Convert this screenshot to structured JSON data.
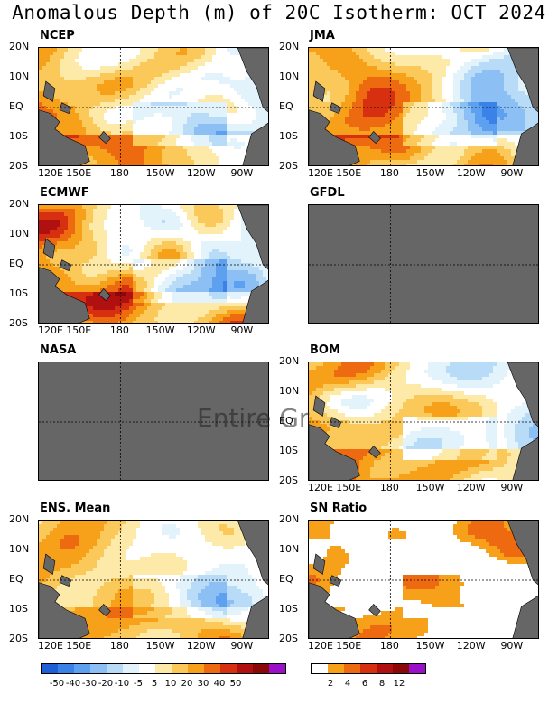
{
  "title": "Anomalous Depth (m) of 20C Isotherm: OCT 2024",
  "watermark": "Entire Gr",
  "y_ticks": [
    "20N",
    "10N",
    "EQ",
    "10S",
    "20S"
  ],
  "x_ticks": [
    "120E",
    "150E",
    "180",
    "150W",
    "120W",
    "90W"
  ],
  "panels": [
    {
      "label": "NCEP",
      "status": "data",
      "seed": 11,
      "mode": "anom"
    },
    {
      "label": "JMA",
      "status": "data",
      "seed": 23,
      "mode": "anom"
    },
    {
      "label": "ECMWF",
      "status": "data",
      "seed": 37,
      "mode": "anom"
    },
    {
      "label": "GFDL",
      "status": "missing",
      "seed": 0,
      "mode": "none"
    },
    {
      "label": "NASA",
      "status": "missing",
      "seed": 0,
      "mode": "none"
    },
    {
      "label": "BOM",
      "status": "data",
      "seed": 53,
      "mode": "anom"
    },
    {
      "label": "ENS. Mean",
      "status": "data",
      "seed": 71,
      "mode": "mean"
    },
    {
      "label": "SN Ratio",
      "status": "data",
      "seed": 89,
      "mode": "snr"
    }
  ],
  "colors": {
    "land": "#666666",
    "missing": "#666666",
    "anomaly_scale": [
      "#1f5fd6",
      "#3b82e8",
      "#5ea0f0",
      "#8cc0f5",
      "#b8dcf8",
      "#e3f3fb",
      "#ffffff",
      "#fde9a8",
      "#fbc95a",
      "#f7a11a",
      "#ee6a10",
      "#d73010",
      "#b01010",
      "#8a0808",
      "#9a10c8"
    ],
    "snr_scale": [
      "#ffffff",
      "#f7a11a",
      "#ee6a10",
      "#d73010",
      "#b01010",
      "#8a0808",
      "#9a10c8"
    ]
  },
  "colorbar_anomaly_labels": [
    "-50",
    "-40",
    "-30",
    "-20",
    "-10",
    "-5",
    "5",
    "10",
    "20",
    "30",
    "40",
    "50"
  ],
  "colorbar_snr_labels": [
    "2",
    "4",
    "6",
    "8",
    "12"
  ]
}
